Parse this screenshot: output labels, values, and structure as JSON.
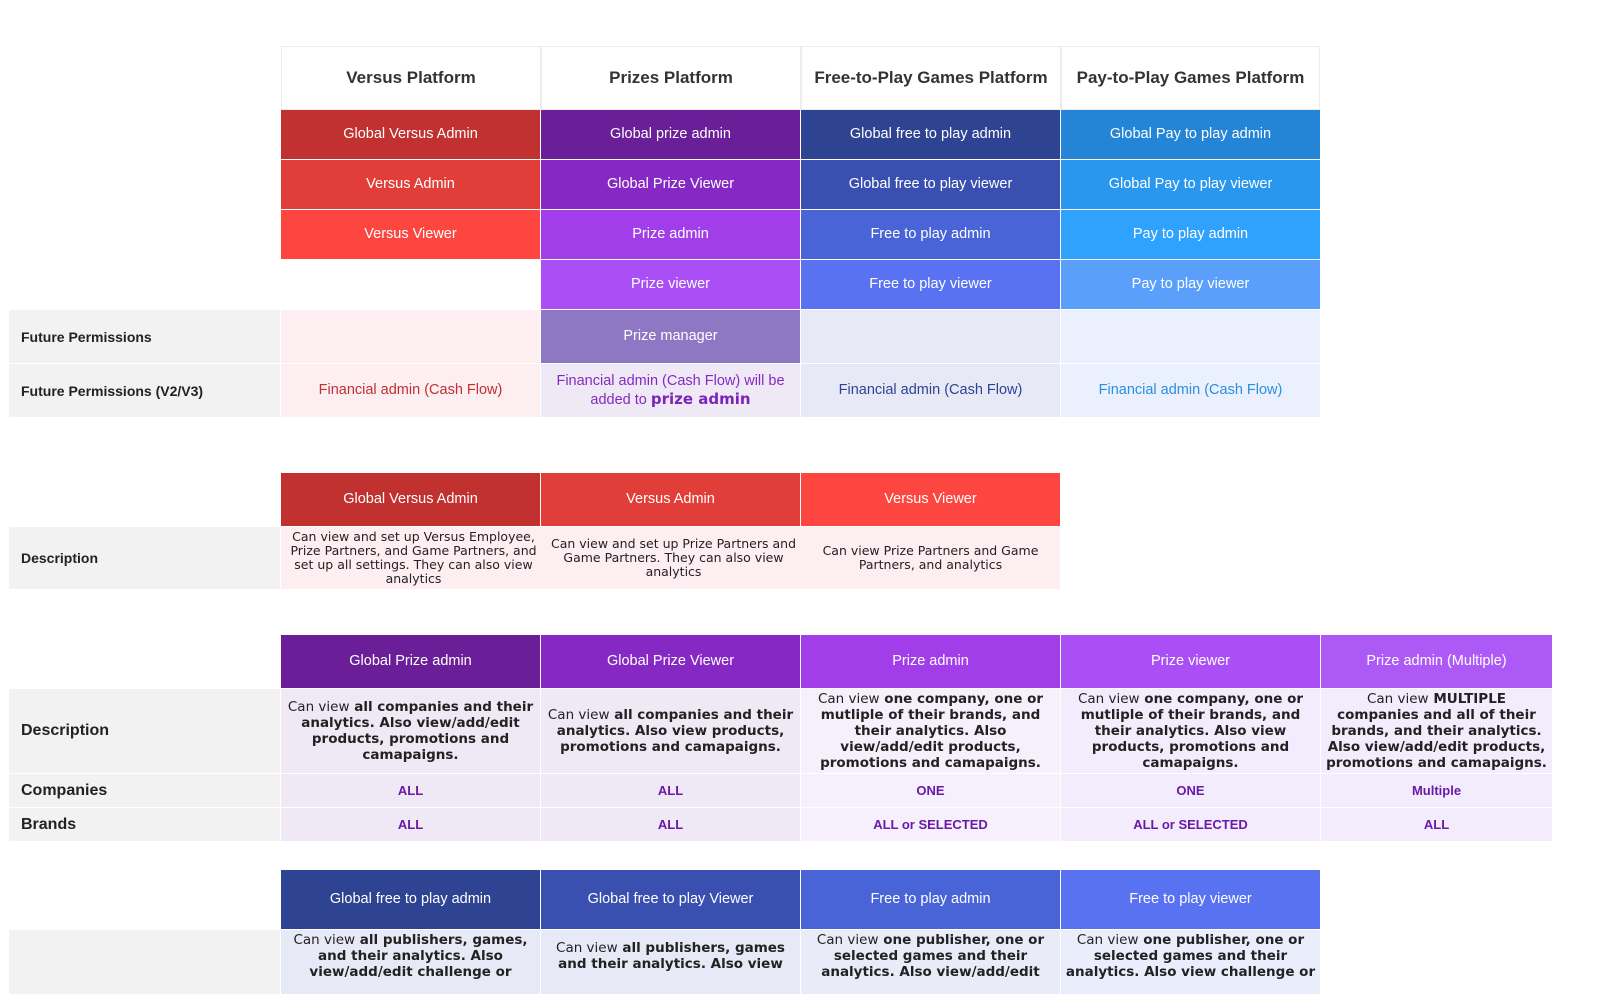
{
  "matrix": {
    "platforms": [
      "Versus Platform",
      "Prizes Platform",
      "Free-to-Play Games Platform",
      "Pay-to-Play Games Platform"
    ],
    "roles": {
      "versus": [
        "Global Versus Admin",
        "Versus Admin",
        "Versus Viewer"
      ],
      "prizes": [
        "Global prize admin",
        "Global Prize Viewer",
        "Prize admin",
        "Prize viewer"
      ],
      "free": [
        "Global free to play admin",
        "Global free to play viewer",
        "Free to play admin",
        "Free to play viewer"
      ],
      "pay": [
        "Global Pay to play admin",
        "Global Pay to play viewer",
        "Pay to play admin",
        "Pay to play viewer"
      ]
    },
    "future_label": "Future Permissions",
    "future_prize": "Prize manager",
    "future_v2_label": "Future Permissions (V2/V3)",
    "fin_versus": "Financial admin (Cash Flow)",
    "fin_prize_prefix": "Financial admin (Cash Flow) will be added to",
    "fin_prize_bold": "prize admin",
    "fin_free": "Financial admin (Cash Flow)",
    "fin_pay": "Financial admin (Cash Flow)"
  },
  "versus_table": {
    "headers": [
      "Global Versus Admin",
      "Versus Admin",
      "Versus Viewer"
    ],
    "row_label": "Description",
    "descriptions": [
      "Can view and set up Versus Employee, Prize Partners, and Game Partners, and set up all settings. They can also view analytics",
      "Can view and set up Prize Partners and Game Partners. They can also view analytics",
      "Can view Prize Partners and Game Partners, and analytics"
    ]
  },
  "prize_table": {
    "headers": [
      "Global Prize admin",
      "Global Prize Viewer",
      "Prize admin",
      "Prize viewer",
      "Prize admin (Multiple)"
    ],
    "desc_label": "Description",
    "desc_prefix": "Can view",
    "descriptions": [
      "all companies and their analytics. Also view/add/edit products, promotions and camapaigns.",
      "all companies and their analytics. Also view products, promotions and camapaigns.",
      "one company, one or mutliple of their brands, and their analytics. Also view/add/edit products, promotions and camapaigns.",
      "one company, one or mutliple of their brands, and their analytics. Also view products, promotions and camapaigns.",
      "MULTIPLE companies and all of their brands, and their analytics. Also view/add/edit products, promotions and camapaigns."
    ],
    "companies_label": "Companies",
    "companies": [
      "ALL",
      "ALL",
      "ONE",
      "ONE",
      "Multiple"
    ],
    "brands_label": "Brands",
    "brands": [
      "ALL",
      "ALL",
      "ALL or SELECTED",
      "ALL or SELECTED",
      "ALL"
    ]
  },
  "free_table": {
    "headers": [
      "Global free to play admin",
      "Global free to play Viewer",
      "Free to play admin",
      "Free to play viewer"
    ],
    "desc_prefix": "Can view",
    "descriptions": [
      "all publishers, games, and their analytics. Also view/add/edit challenge or",
      "all publishers, games and their analytics. Also view",
      "one publisher, one or selected games and their analytics. Also view/add/edit",
      "one publisher, one or selected games and their analytics. Also view challenge or"
    ]
  },
  "colors": {
    "versus": [
      "#c0312f",
      "#e13e39",
      "#fd4640"
    ],
    "prizes": [
      "#6a1f99",
      "#8629c4",
      "#a23ee9",
      "#a94ff5",
      "#8e78c3"
    ],
    "free": [
      "#2f4393",
      "#3a50b0",
      "#4864d6",
      "#5872f1"
    ],
    "pay": [
      "#2485d6",
      "#2a97ee",
      "#2fa2fe",
      "#5a9ff9"
    ]
  }
}
